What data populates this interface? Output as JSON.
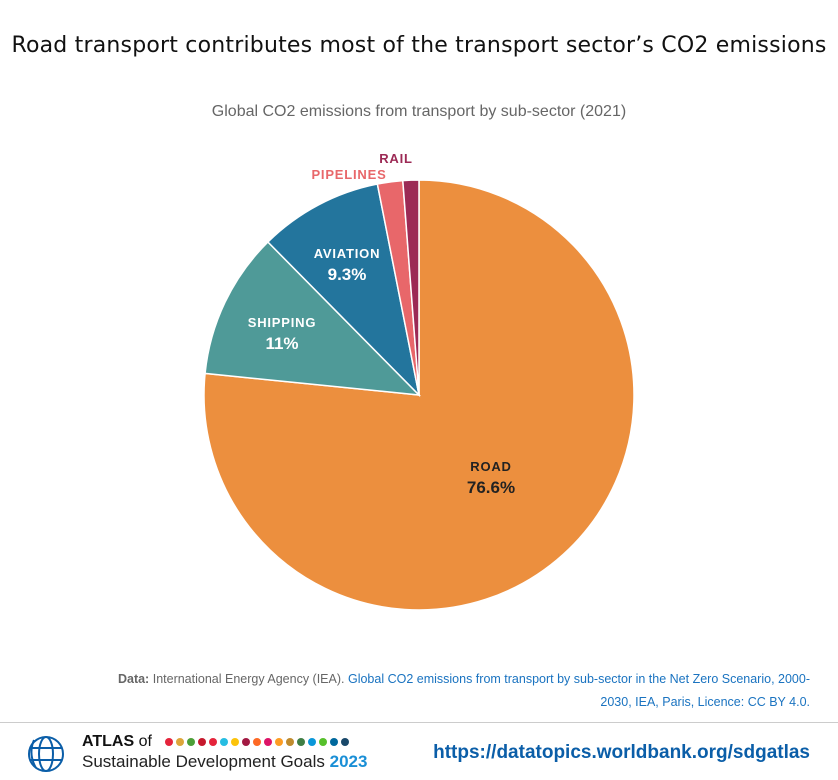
{
  "title": "Road transport contributes most of the transport sector’s CO2 emissions",
  "subtitle": "Global CO2 emissions from transport by sub-sector (2021)",
  "chart_data": {
    "type": "pie",
    "title": "Road transport contributes most of the transport sector’s CO2 emissions",
    "subtitle": "Global CO2 emissions from transport by sub-sector (2021)",
    "start": "12 o'clock, clockwise",
    "slices": [
      {
        "label": "ROAD",
        "value": 76.6,
        "value_label": "76.6%",
        "color": "#EC8F3E"
      },
      {
        "label": "SHIPPING",
        "value": 11,
        "value_label": "11%",
        "color": "#4F9A98"
      },
      {
        "label": "AVIATION",
        "value": 9.3,
        "value_label": "9.3%",
        "color": "#23759D"
      },
      {
        "label": "PIPELINES",
        "value": 1.9,
        "value_label": "",
        "color": "#E8676A"
      },
      {
        "label": "RAIL",
        "value": 1.2,
        "value_label": "",
        "color": "#9C2A55"
      }
    ]
  },
  "source": {
    "prefix": "Data:",
    "text": "International Energy Agency (IEA).",
    "link": "Global CO2 emissions from transport by sub-sector in the Net Zero Scenario, 2000-2030, IEA, Paris, Licence: CC BY 4.0."
  },
  "footer": {
    "atlas": "ATLAS",
    "of": "of",
    "line2": "Sustainable Development Goals",
    "year": "2023",
    "url": "https://datatopics.worldbank.org/sdgatlas",
    "sdg_colors": [
      "#E5243B",
      "#DDA63A",
      "#4C9F38",
      "#C5192D",
      "#E5243B",
      "#26BDE2",
      "#FCC30B",
      "#A21942",
      "#FD6925",
      "#DD1367",
      "#FD9D24",
      "#BF8B2E",
      "#3F7E44",
      "#0A97D9",
      "#56C02B",
      "#00689D",
      "#19486A"
    ]
  }
}
